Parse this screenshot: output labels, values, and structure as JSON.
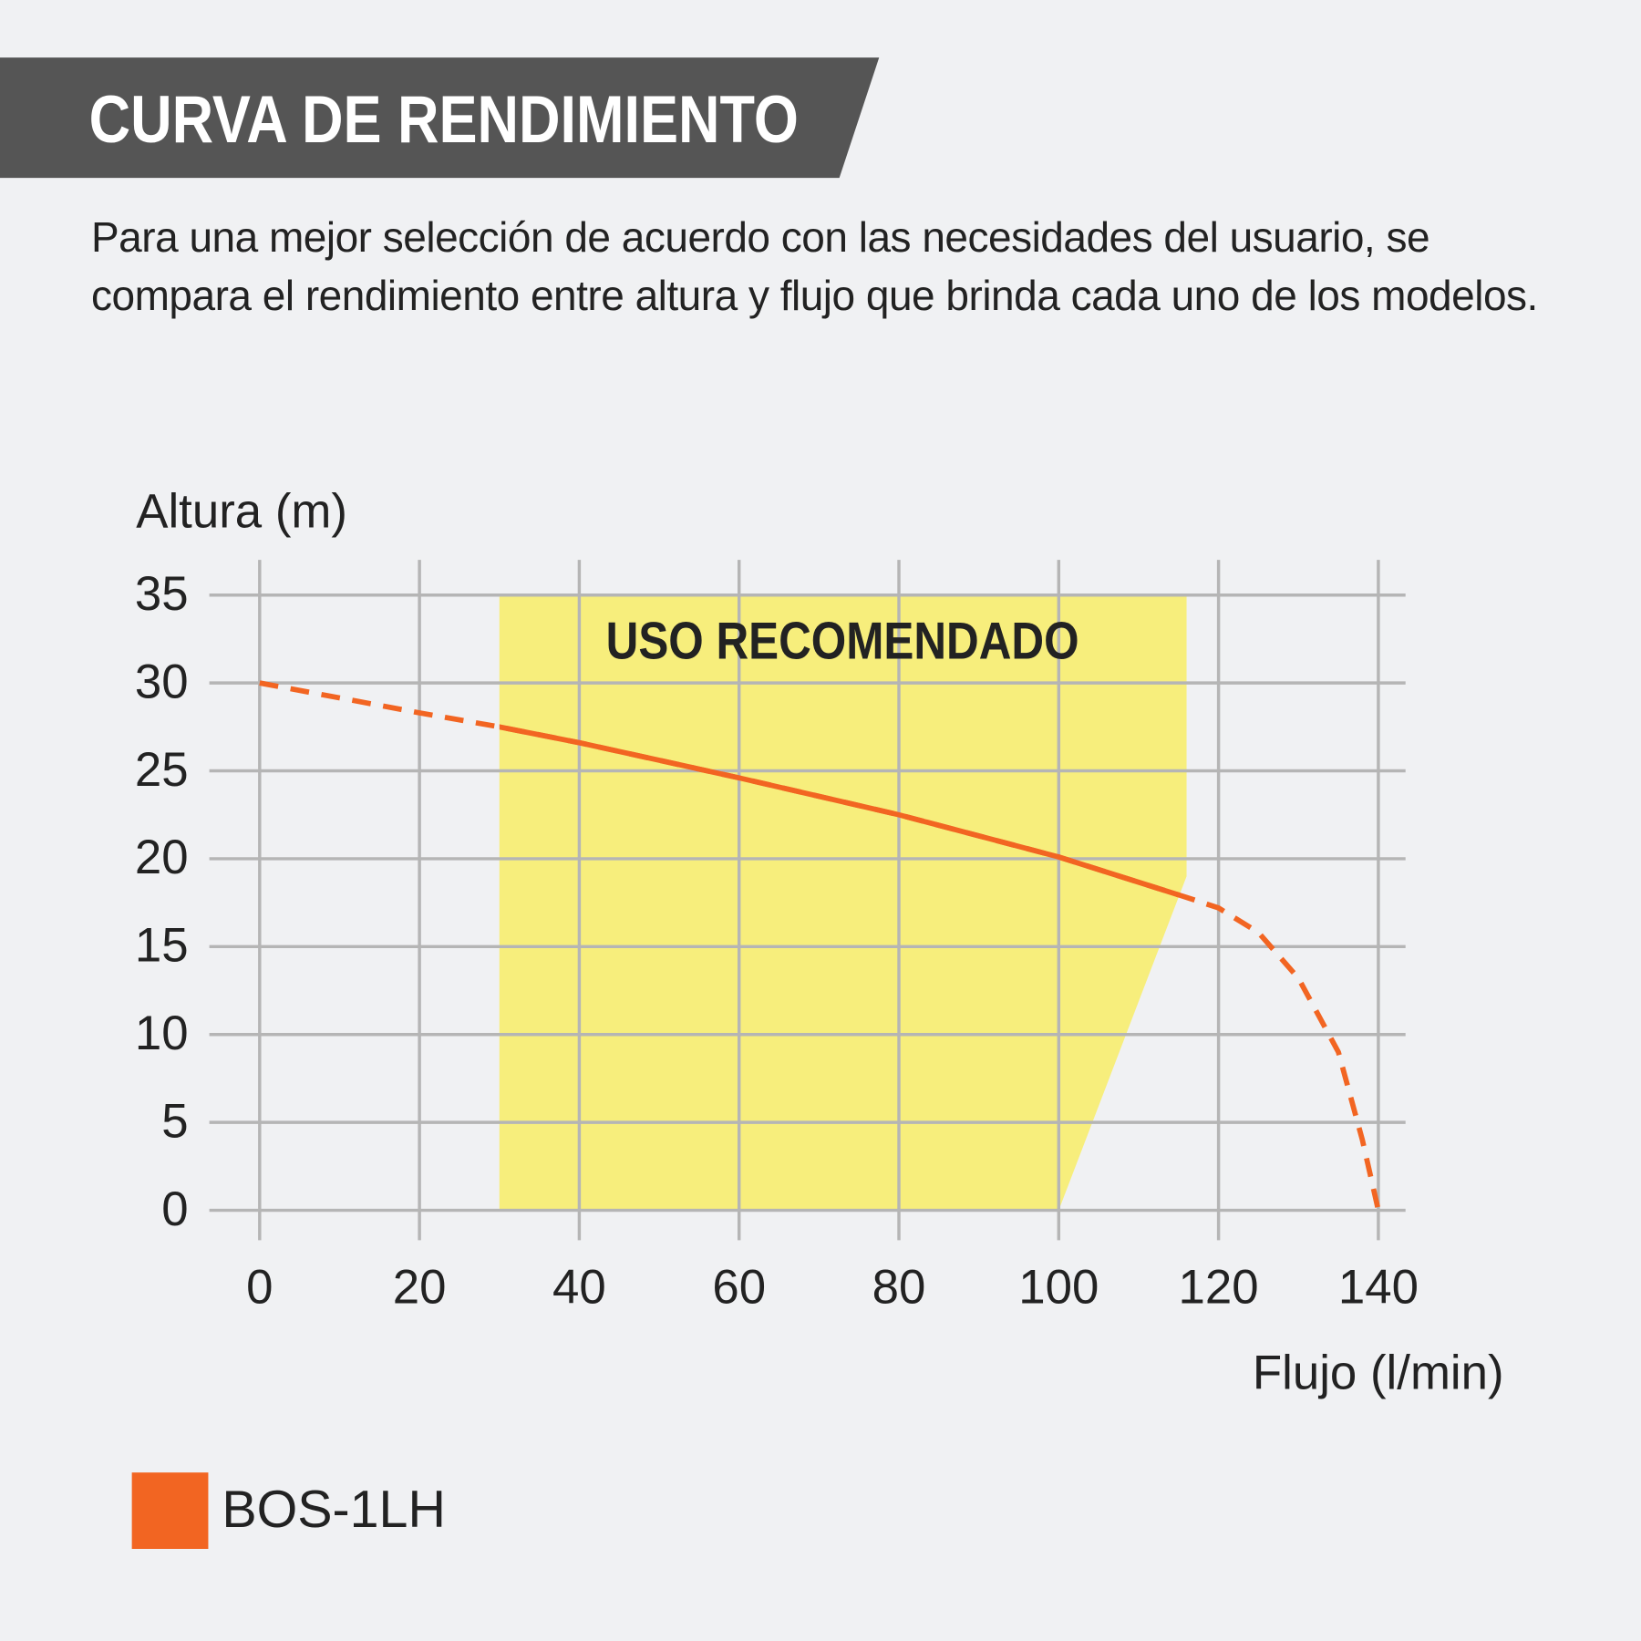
{
  "chart_data": {
    "type": "line",
    "title": "CURVA DE RENDIMIENTO",
    "subtitle": "Para una mejor selección de acuerdo con las necesidades del usuario, se compara el rendimiento entre altura y flujo que brinda cada uno de los modelos.",
    "y_label": "Altura (m)",
    "x_label": "Flujo (l/min)",
    "xlim": [
      -6.3,
      143.4
    ],
    "ylim": [
      -1.7,
      37
    ],
    "xticks": [
      0,
      20,
      40,
      60,
      80,
      100,
      120,
      140
    ],
    "yticks": [
      0,
      5,
      10,
      15,
      20,
      25,
      30,
      35
    ],
    "grid": true,
    "recommended": {
      "label": "USO RECOMENDADO",
      "color": "#f7ee7c",
      "x": [
        30,
        116,
        116,
        100,
        30
      ],
      "y": [
        35,
        35,
        19,
        0,
        0
      ]
    },
    "series": [
      {
        "name": "BOS-1LH",
        "color": "#f26522",
        "x": [
          0,
          20,
          30,
          40,
          60,
          80,
          100,
          116,
          120,
          125,
          130,
          135,
          138,
          140
        ],
        "values": [
          30,
          28.3,
          27.5,
          26.6,
          24.6,
          22.5,
          20.1,
          17.8,
          17.2,
          15.8,
          13.2,
          9,
          4,
          0
        ]
      }
    ]
  }
}
